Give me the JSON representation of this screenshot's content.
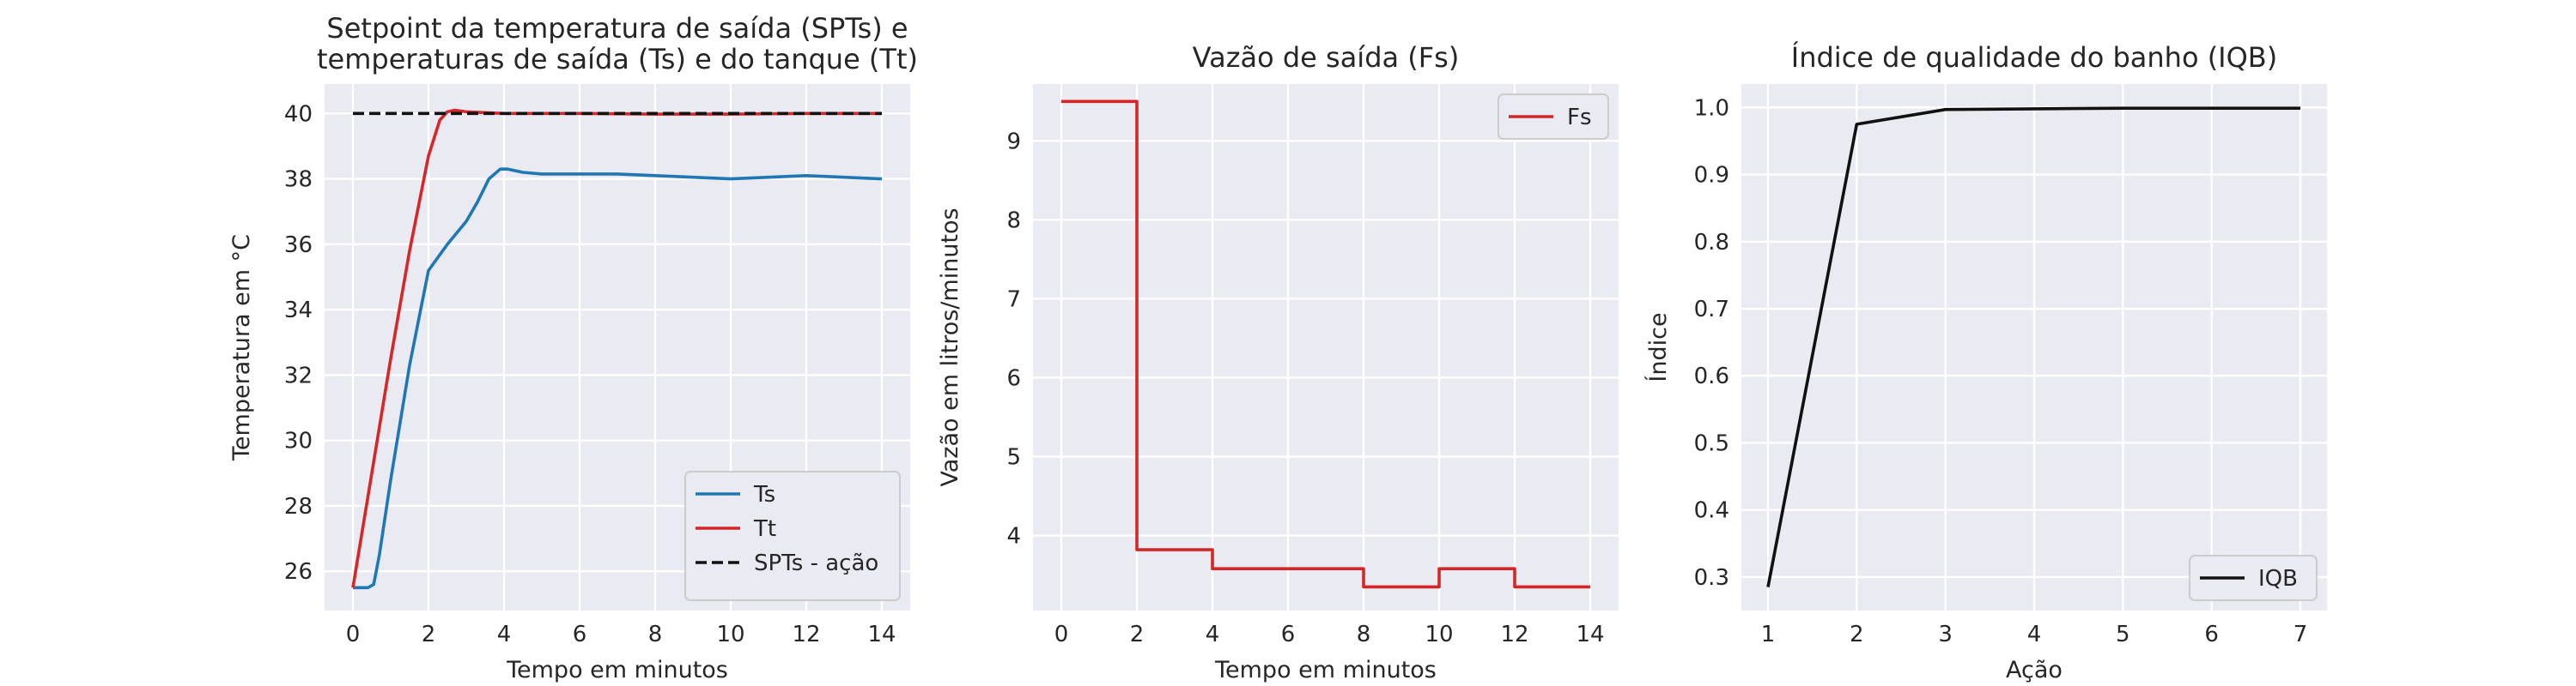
{
  "chart_data": [
    {
      "type": "line",
      "title": [
        "Setpoint da temperatura de saída (SPTs) e",
        "temperaturas de saída (Ts) e do tanque (Tt)"
      ],
      "xlabel": "Tempo em minutos",
      "ylabel": "Temperatura em °C",
      "xlim": [
        -0.75,
        14.75
      ],
      "ylim": [
        24.8,
        40.9
      ],
      "xticks": [
        0,
        2,
        4,
        6,
        8,
        10,
        12,
        14
      ],
      "yticks": [
        26,
        28,
        30,
        32,
        34,
        36,
        38,
        40
      ],
      "grid": true,
      "legend": "lower-right",
      "series": [
        {
          "name": "Ts",
          "color": "#1f77b4",
          "style": "solid",
          "x": [
            0,
            0.4,
            0.55,
            0.7,
            1.0,
            1.5,
            2.0,
            2.5,
            3.0,
            3.3,
            3.6,
            3.9,
            4.1,
            4.5,
            5,
            6,
            7,
            8,
            9,
            10,
            11,
            12,
            13,
            14
          ],
          "y": [
            25.5,
            25.5,
            25.6,
            26.5,
            28.8,
            32.3,
            35.2,
            36.0,
            36.7,
            37.3,
            38.0,
            38.3,
            38.3,
            38.2,
            38.15,
            38.15,
            38.15,
            38.1,
            38.05,
            38.0,
            38.05,
            38.1,
            38.05,
            38.0
          ]
        },
        {
          "name": "Tt",
          "color": "#d62728",
          "style": "solid",
          "x": [
            0,
            0.5,
            1.0,
            1.5,
            2.0,
            2.3,
            2.5,
            2.7,
            3.0,
            4,
            6,
            8,
            10,
            12,
            14
          ],
          "y": [
            25.5,
            29.0,
            32.5,
            35.8,
            38.7,
            39.8,
            40.05,
            40.1,
            40.05,
            40.0,
            40.0,
            39.98,
            39.98,
            40.0,
            40.0
          ]
        },
        {
          "name": "SPTs - ação",
          "color": "#111111",
          "style": "dashed",
          "x": [
            0,
            14
          ],
          "y": [
            40,
            40
          ]
        }
      ]
    },
    {
      "type": "line",
      "title": [
        "Vazão de saída (Fs)"
      ],
      "xlabel": "Tempo em minutos",
      "ylabel": "Vazão em litros/minutos",
      "xlim": [
        -0.75,
        14.75
      ],
      "ylim": [
        3.05,
        9.72
      ],
      "xticks": [
        0,
        2,
        4,
        6,
        8,
        10,
        12,
        14
      ],
      "yticks": [
        4,
        5,
        6,
        7,
        8,
        9
      ],
      "grid": true,
      "legend": "upper-right",
      "series": [
        {
          "name": "Fs",
          "color": "#d62728",
          "style": "solid",
          "x": [
            0,
            2,
            2,
            4,
            4,
            8,
            8,
            10,
            10,
            12,
            12,
            14
          ],
          "y": [
            9.5,
            9.5,
            3.82,
            3.82,
            3.58,
            3.58,
            3.35,
            3.35,
            3.58,
            3.58,
            3.35,
            3.35
          ]
        }
      ]
    },
    {
      "type": "line",
      "title": [
        "Índice de qualidade do banho (IQB)"
      ],
      "xlabel": "Ação",
      "ylabel": "Índice",
      "xlim": [
        0.7,
        7.3
      ],
      "ylim": [
        0.25,
        1.035
      ],
      "xticks": [
        1,
        2,
        3,
        4,
        5,
        6,
        7
      ],
      "yticks": [
        0.3,
        0.4,
        0.5,
        0.6,
        0.7,
        0.8,
        0.9,
        1.0
      ],
      "grid": true,
      "legend": "lower-right",
      "series": [
        {
          "name": "IQB",
          "color": "#111111",
          "style": "solid",
          "x": [
            1,
            2,
            3,
            4,
            5,
            6,
            7
          ],
          "y": [
            0.285,
            0.975,
            0.997,
            0.998,
            0.999,
            0.999,
            0.999
          ]
        }
      ]
    }
  ]
}
